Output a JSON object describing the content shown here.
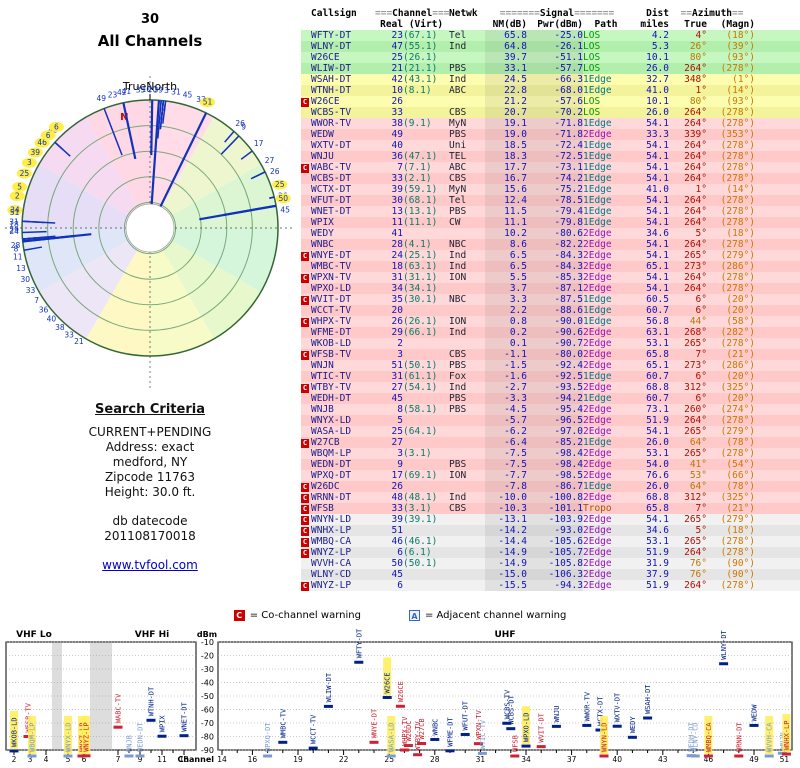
{
  "polar": {
    "value": "30",
    "title": "All Channels",
    "true_north": "TrueNorth",
    "north": "N"
  },
  "search": {
    "heading": "Search Criteria",
    "lines": [
      "CURRENT+PENDING",
      "Address: exact",
      "medford, NY",
      "Zipcode 11763",
      "Height: 30.0 ft."
    ],
    "datecode_label": "db datecode",
    "datecode": "201108170018",
    "link": "www.tvfool.com"
  },
  "legend": {
    "c": "C",
    "c_text": "= Co-channel warning",
    "a": "A",
    "a_text": "= Adjacent channel warning"
  },
  "colors": {
    "los": "#009900",
    "edge1": "#007788",
    "edge2": "#9911bb",
    "tropo": "#aa5500",
    "co_channel": "#cc0000",
    "adjacent": "#3366cc",
    "pending_highlight": "#ffee44"
  },
  "table": {
    "headers": {
      "callsign": "Callsign",
      "ch_bar": "===",
      "channel_group": "Channel",
      "real": "Real",
      "virt": "(Virt)",
      "netwk": "Netwk",
      "sig_bar": "=======",
      "signal_group": "Signal",
      "nm": "NM(dB)",
      "pwr": "Pwr(dBm)",
      "path": "Path",
      "dist_group": "Dist",
      "miles": "miles",
      "az_bar": "==",
      "azimuth_group": "Azimuth",
      "az_true": "True",
      "az_magn": "(Magn)"
    },
    "row_order": [
      "callsign",
      "warn",
      "real",
      "virt",
      "netwk",
      "nm_db",
      "pwr_dbm",
      "path",
      "dist_miles",
      "az_true",
      "az_magn",
      "pending"
    ],
    "rows": [
      [
        "WFTY-DT",
        "",
        23,
        "(67.1)",
        "Tel",
        65.8,
        -25.0,
        "LOS",
        4.2,
        "4°",
        "(18°)",
        0
      ],
      [
        "WLNY-DT",
        "",
        47,
        "(55.1)",
        "Ind",
        64.8,
        -26.1,
        "LOS",
        5.3,
        "26°",
        "(39°)",
        0
      ],
      [
        "W26CE",
        "",
        25,
        "(26.1)",
        "",
        39.7,
        -51.1,
        "LOS",
        10.1,
        "80°",
        "(93°)",
        1
      ],
      [
        "WLIW-DT",
        "",
        21,
        "(21.1)",
        "PBS",
        33.1,
        -57.7,
        "LOS",
        26.0,
        "264°",
        "(278°)",
        0
      ],
      [
        "WSAH-DT",
        "",
        42,
        "(43.1)",
        "Ind",
        24.5,
        -66.3,
        "1Edge",
        32.7,
        "348°",
        "(1°)",
        0
      ],
      [
        "WTNH-DT",
        "",
        10,
        "(8.1)",
        "ABC",
        22.8,
        -68.0,
        "1Edge",
        41.0,
        "1°",
        "(14°)",
        0
      ],
      [
        "W26CE",
        "C",
        26,
        "",
        "",
        21.2,
        -57.6,
        "LOS",
        10.1,
        "80°",
        "(93°)",
        0
      ],
      [
        "WCBS-TV",
        "",
        33,
        "",
        "CBS",
        20.7,
        -70.2,
        "LOS",
        26.0,
        "264°",
        "(278°)",
        0
      ],
      [
        "WWOR-TV",
        "",
        38,
        "(9.1)",
        "MyN",
        19.1,
        -71.8,
        "1Edge",
        54.1,
        "264°",
        "(278°)",
        0
      ],
      [
        "WEDW",
        "",
        49,
        "",
        "PBS",
        19.0,
        -71.8,
        "2Edge",
        33.3,
        "339°",
        "(353°)",
        0
      ],
      [
        "WXTV-DT",
        "",
        40,
        "",
        "Uni",
        18.5,
        -72.4,
        "1Edge",
        54.1,
        "264°",
        "(278°)",
        0
      ],
      [
        "WNJU",
        "",
        36,
        "(47.1)",
        "TEL",
        18.3,
        -72.5,
        "1Edge",
        54.1,
        "264°",
        "(278°)",
        0
      ],
      [
        "WABC-TV",
        "C",
        7,
        "(7.1)",
        "ABC",
        17.7,
        -73.1,
        "1Edge",
        54.1,
        "264°",
        "(278°)",
        0
      ],
      [
        "WCBS-DT",
        "",
        33,
        "(2.1)",
        "CBS",
        16.7,
        -74.2,
        "1Edge",
        54.1,
        "264°",
        "(278°)",
        0
      ],
      [
        "WCTX-DT",
        "",
        39,
        "(59.1)",
        "MyN",
        15.6,
        -75.2,
        "1Edge",
        41.0,
        "1°",
        "(14°)",
        0
      ],
      [
        "WFUT-DT",
        "",
        30,
        "(68.1)",
        "Tel",
        12.4,
        -78.5,
        "1Edge",
        54.1,
        "264°",
        "(278°)",
        0
      ],
      [
        "WNET-DT",
        "",
        13,
        "(13.1)",
        "PBS",
        11.5,
        -79.4,
        "1Edge",
        54.1,
        "264°",
        "(278°)",
        0
      ],
      [
        "WPIX",
        "",
        11,
        "(11.1)",
        "CW",
        11.1,
        -79.8,
        "1Edge",
        54.1,
        "264°",
        "(278°)",
        0
      ],
      [
        "WEDY",
        "",
        41,
        "",
        "",
        10.2,
        -80.6,
        "2Edge",
        34.6,
        "5°",
        "(18°)",
        0
      ],
      [
        "WNBC",
        "",
        28,
        "(4.1)",
        "NBC",
        8.6,
        -82.2,
        "2Edge",
        54.1,
        "264°",
        "(278°)",
        0
      ],
      [
        "WNYE-DT",
        "C",
        24,
        "(25.1)",
        "Ind",
        6.5,
        -84.3,
        "2Edge",
        54.1,
        "265°",
        "(279°)",
        0
      ],
      [
        "WMBC-TV",
        "",
        18,
        "(63.1)",
        "Ind",
        6.5,
        -84.3,
        "2Edge",
        65.1,
        "273°",
        "(286°)",
        0
      ],
      [
        "WPXN-TV",
        "C",
        31,
        "(31.1)",
        "ION",
        5.5,
        -85.3,
        "2Edge",
        54.1,
        "264°",
        "(278°)",
        0
      ],
      [
        "WPXO-LD",
        "",
        34,
        "(34.1)",
        "",
        3.7,
        -87.1,
        "2Edge",
        54.1,
        "264°",
        "(278°)",
        1
      ],
      [
        "WVIT-DT",
        "C",
        35,
        "(30.1)",
        "NBC",
        3.3,
        -87.5,
        "1Edge",
        60.5,
        "6°",
        "(20°)",
        0
      ],
      [
        "WCCT-TV",
        "",
        20,
        "",
        "",
        2.2,
        -88.6,
        "1Edge",
        60.7,
        "6°",
        "(20°)",
        0
      ],
      [
        "WHPX-TV",
        "C",
        26,
        "(26.1)",
        "ION",
        0.8,
        -90.0,
        "1Edge",
        56.8,
        "44°",
        "(58°)",
        0
      ],
      [
        "WFME-DT",
        "",
        29,
        "(66.1)",
        "Ind",
        0.2,
        -90.6,
        "2Edge",
        63.1,
        "268°",
        "(282°)",
        0
      ],
      [
        "WKOB-LD",
        "",
        2,
        "",
        "",
        0.1,
        -90.7,
        "2Edge",
        53.1,
        "265°",
        "(278°)",
        1
      ],
      [
        "WFSB-TV",
        "C",
        3,
        "",
        "CBS",
        -1.1,
        -80.0,
        "2Edge",
        65.8,
        "7°",
        "(21°)",
        0
      ],
      [
        "WNJN",
        "",
        51,
        "(50.1)",
        "PBS",
        -1.5,
        -92.4,
        "2Edge",
        65.1,
        "273°",
        "(286°)",
        0
      ],
      [
        "WTIC-TV",
        "",
        31,
        "(61.1)",
        "Fox",
        -1.6,
        -92.5,
        "1Edge",
        60.7,
        "6°",
        "(20°)",
        0
      ],
      [
        "WTBY-TV",
        "C",
        27,
        "(54.1)",
        "Ind",
        -2.7,
        -93.5,
        "2Edge",
        68.8,
        "312°",
        "(325°)",
        0
      ],
      [
        "WEDH-DT",
        "",
        45,
        "",
        "PBS",
        -3.3,
        -94.2,
        "1Edge",
        60.7,
        "6°",
        "(20°)",
        0
      ],
      [
        "WNJB",
        "",
        8,
        "(58.1)",
        "PBS",
        -4.5,
        -95.4,
        "2Edge",
        73.1,
        "260°",
        "(274°)",
        0
      ],
      [
        "WNYX-LD",
        "",
        5,
        "",
        "",
        -5.7,
        -96.5,
        "2Edge",
        51.9,
        "264°",
        "(278°)",
        1
      ],
      [
        "WASA-LD",
        "",
        25,
        "(64.1)",
        "",
        -6.2,
        -97.0,
        "2Edge",
        54.1,
        "265°",
        "(279°)",
        1
      ],
      [
        "W27CB",
        "C",
        27,
        "",
        "",
        -6.4,
        -85.2,
        "1Edge",
        26.0,
        "64°",
        "(78°)",
        0
      ],
      [
        "WBQM-LP",
        "",
        3,
        "(3.1)",
        "",
        -7.5,
        -98.4,
        "2Edge",
        53.1,
        "265°",
        "(278°)",
        1
      ],
      [
        "WEDN-DT",
        "",
        9,
        "",
        "PBS",
        -7.5,
        -98.4,
        "2Edge",
        54.0,
        "41°",
        "(54°)",
        0
      ],
      [
        "WPXQ-DT",
        "",
        17,
        "(69.1)",
        "ION",
        -7.7,
        -98.5,
        "2Edge",
        76.6,
        "53°",
        "(66°)",
        0
      ],
      [
        "W26DC",
        "C",
        26,
        "",
        "",
        -7.8,
        -86.7,
        "1Edge",
        26.0,
        "64°",
        "(78°)",
        0
      ],
      [
        "WRNN-DT",
        "C",
        48,
        "(48.1)",
        "Ind",
        -10.0,
        -100.8,
        "2Edge",
        68.8,
        "312°",
        "(325°)",
        0
      ],
      [
        "WFSB",
        "C",
        33,
        "(3.1)",
        "CBS",
        -10.3,
        -101.1,
        "Tropo",
        65.8,
        "7°",
        "(21°)",
        0
      ],
      [
        "WNYN-LD",
        "C",
        39,
        "(39.1)",
        "",
        -13.1,
        -103.9,
        "2Edge",
        54.1,
        "265°",
        "(279°)",
        1
      ],
      [
        "WNHX-LP",
        "C",
        51,
        "",
        "",
        -14.2,
        -93.0,
        "2Edge",
        34.6,
        "5°",
        "(18°)",
        1
      ],
      [
        "WMBQ-CA",
        "C",
        46,
        "(46.1)",
        "",
        -14.4,
        -105.6,
        "2Edge",
        53.1,
        "265°",
        "(278°)",
        1
      ],
      [
        "WNYZ-LP",
        "C",
        6,
        "(6.1)",
        "",
        -14.9,
        -105.7,
        "2Edge",
        51.9,
        "264°",
        "(278°)",
        1
      ],
      [
        "WVVH-CA",
        "",
        50,
        "(50.1)",
        "",
        -14.9,
        -105.8,
        "2Edge",
        31.9,
        "76°",
        "(90°)",
        1
      ],
      [
        "WLNY-CD",
        "",
        45,
        "",
        "",
        -15.0,
        -106.3,
        "2Edge",
        37.9,
        "76°",
        "(90°)",
        0
      ],
      [
        "WNYZ-LP",
        "C",
        6,
        "",
        "",
        -15.5,
        -94.3,
        "2Edge",
        51.9,
        "264°",
        "(278°)",
        1
      ]
    ]
  },
  "chart_data": {
    "type": "scatter",
    "title": "",
    "ylabel": "dBm",
    "xlabel": "Channel",
    "y_ticks": [
      -10,
      -20,
      -30,
      -40,
      -50,
      -60,
      -70,
      -80,
      -90
    ],
    "y_range": [
      -10,
      -90
    ],
    "band_labels": [
      "VHF Lo",
      "VHF Hi",
      "UHF"
    ],
    "vhf_ticks": [
      2,
      3,
      4,
      5,
      6,
      7,
      9,
      11,
      13
    ],
    "uhf_ticks": [
      14,
      16,
      19,
      22,
      25,
      28,
      31,
      34,
      37,
      40,
      43,
      46,
      49,
      51
    ],
    "x_range_vhf": [
      2,
      13
    ],
    "x_range_uhf": [
      14,
      51
    ],
    "grid": true,
    "points_note": "Each station from table.rows plotted at (real channel, Pwr dBm); label = callsign",
    "polar_note": "Radar plot: one spoke per table row at True azimuth, spoke length proportional to NM(dB), label = real channel"
  }
}
